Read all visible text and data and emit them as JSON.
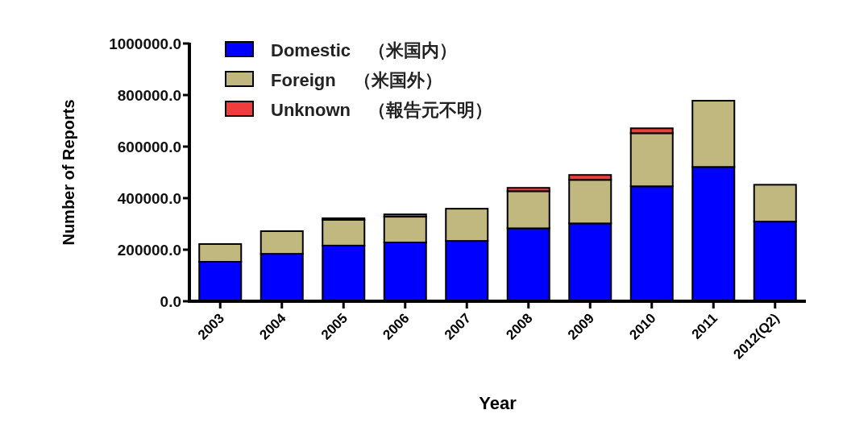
{
  "chart_data": {
    "type": "bar",
    "stacked": true,
    "xlabel": "Year",
    "ylabel": "Number of Reports",
    "categories": [
      "2003",
      "2004",
      "2005",
      "2006",
      "2007",
      "2008",
      "2009",
      "2010",
      "2011",
      "2012(Q2)"
    ],
    "series": [
      {
        "name": "Domestic　（米国内）",
        "color": "#0000ff",
        "values": [
          153000,
          184000,
          216000,
          228000,
          234000,
          283000,
          302000,
          446000,
          521000,
          309000
        ]
      },
      {
        "name": "Foreign　（米国外）",
        "color": "#c0b87f",
        "values": [
          69000,
          88000,
          100000,
          100000,
          125000,
          144000,
          169000,
          206000,
          257000,
          143000
        ]
      },
      {
        "name": "Unknown　（報告元不明）",
        "color": "#f03c3c",
        "values": [
          null,
          null,
          6000,
          9000,
          null,
          13000,
          19000,
          19000,
          null,
          null
        ]
      }
    ],
    "ylim": [
      0,
      1000000
    ],
    "yticks": [
      {
        "value": 0,
        "label": "0.0"
      },
      {
        "value": 200000,
        "label": "200000.0"
      },
      {
        "value": 400000,
        "label": "400000.0"
      },
      {
        "value": 600000,
        "label": "600000.0"
      },
      {
        "value": 800000,
        "label": "800000.0"
      },
      {
        "value": 1000000,
        "label": "1000000.0"
      }
    ],
    "grid": false,
    "legend": "top left"
  }
}
